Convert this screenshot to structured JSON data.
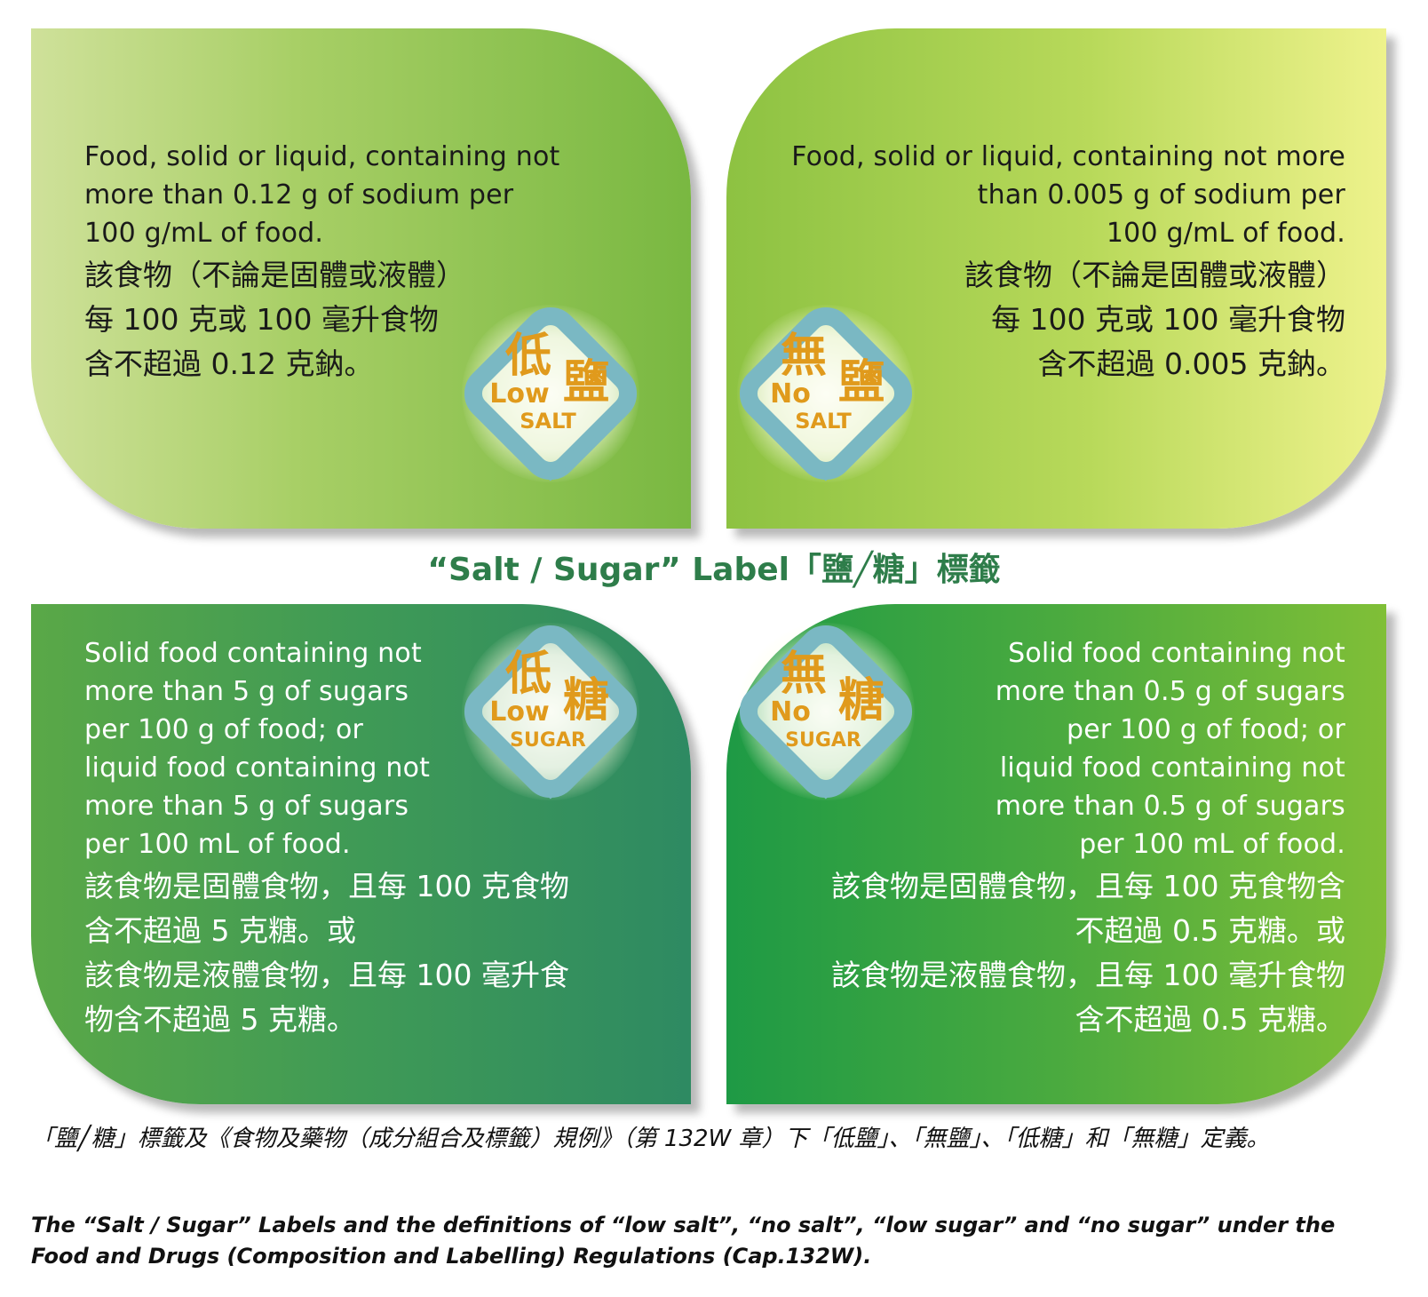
{
  "quadrants": {
    "low_salt": {
      "en": [
        "Food, solid or liquid, containing not",
        "more than 0.12 g of sodium per",
        "100 g/mL of food."
      ],
      "zh": [
        "該食物（不論是固體或液體）",
        "每 100 克或 100 毫升食物",
        "含不超過 0.12 克鈉。"
      ],
      "badge": {
        "han1": "低",
        "han2": "鹽",
        "en1": "Low",
        "en2": "SALT"
      }
    },
    "no_salt": {
      "en": [
        "Food, solid or liquid, containing not more",
        "than 0.005 g of sodium per",
        "100 g/mL of food."
      ],
      "zh": [
        "該食物（不論是固體或液體）",
        "每 100 克或 100 毫升食物",
        "含不超過 0.005 克鈉。"
      ],
      "badge": {
        "han1": "無",
        "han2": "鹽",
        "en1": "No",
        "en2": "SALT"
      }
    },
    "low_sugar": {
      "en": [
        "Solid food containing not",
        "more than 5 g of sugars",
        "per 100 g of food; or",
        "liquid food containing not",
        "more than 5 g of sugars",
        "per 100 mL of food."
      ],
      "zh": [
        "該食物是固體食物，且每 100 克食物",
        "含不超過 5 克糖。或",
        "該食物是液體食物，且每 100 毫升食",
        "物含不超過 5 克糖。"
      ],
      "badge": {
        "han1": "低",
        "han2": "糖",
        "en1": "Low",
        "en2": "SUGAR"
      }
    },
    "no_sugar": {
      "en": [
        "Solid food containing not",
        "more than 0.5 g of sugars",
        "per 100 g of food; or",
        "liquid food containing not",
        "more than 0.5 g of sugars",
        "per 100 mL of food."
      ],
      "zh": [
        "該食物是固體食物，且每 100 克食物含",
        "不超過 0.5 克糖。或",
        "該食物是液體食物，且每 100 毫升食物",
        "含不超過 0.5 克糖。"
      ],
      "badge": {
        "han1": "無",
        "han2": "糖",
        "en1": "No",
        "en2": "SUGAR"
      }
    }
  },
  "center_title": "“Salt / Sugar” Label「鹽╱糖」標籤",
  "caption": {
    "zh": "「鹽╱糖」標籤及《食物及藥物（成分組合及標籤）規例》（第 132W 章）下「低鹽」、「無鹽」、「低糖」和「無糖」定義。",
    "en": "The “Salt / Sugar” Labels and the definitions of “low salt”, “no salt”, “low sugar” and “no sugar” under the Food and Drugs (Composition and Labelling) Regulations (Cap.132W)."
  },
  "colors": {
    "badge_border": "#7ab8c3",
    "badge_text": "#e09a1c",
    "title_green": "#2e7d4a"
  }
}
